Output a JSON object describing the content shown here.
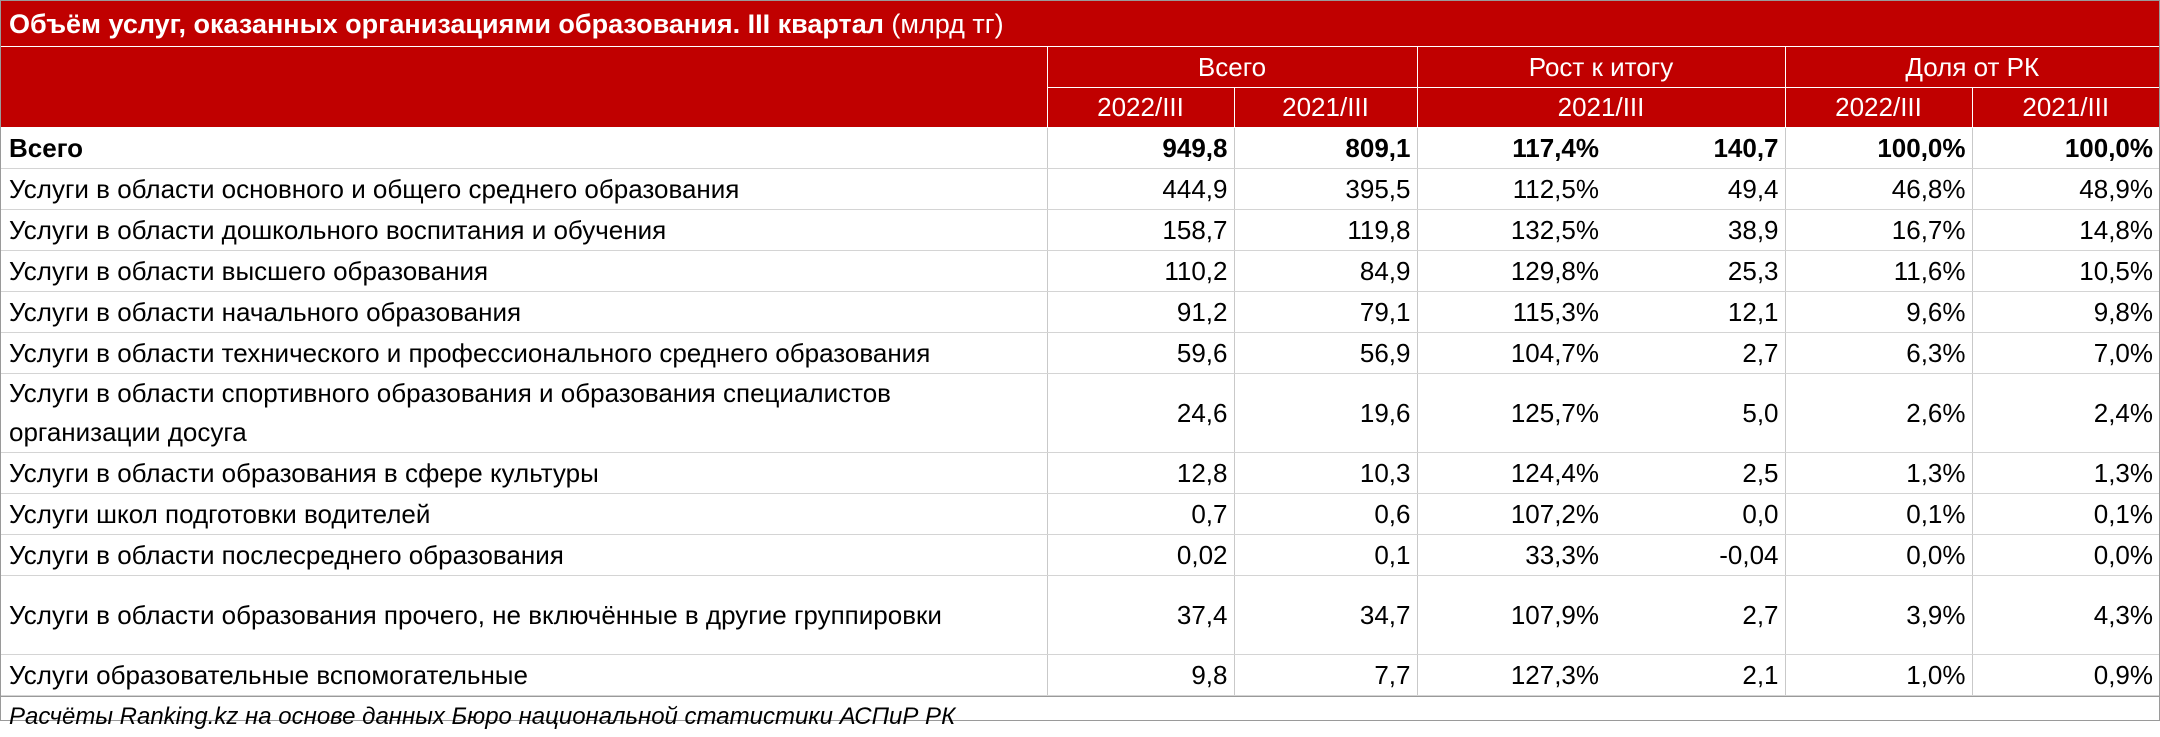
{
  "title": {
    "bold": "Объём услуг, оказанных организациями образования. III квартал",
    "units": " (млрд тг)"
  },
  "header": {
    "group_total": "Всего",
    "group_growth": "Рост к итогу",
    "group_share": "Доля от РК",
    "total_2022": "2022/III",
    "total_2021": "2021/III",
    "growth_2021": "2021/III",
    "share_2022": "2022/III",
    "share_2021": "2021/III"
  },
  "rows": [
    {
      "label": "Всего",
      "v2022": "949,8",
      "v2021": "809,1",
      "growth_pct": "117,4%",
      "growth_abs": "140,7",
      "share2022": "100,0%",
      "share2021": "100,0%"
    },
    {
      "label": "Услуги в области основного и общего среднего образования",
      "v2022": "444,9",
      "v2021": "395,5",
      "growth_pct": "112,5%",
      "growth_abs": "49,4",
      "share2022": "46,8%",
      "share2021": "48,9%"
    },
    {
      "label": "Услуги в области дошкольного воспитания и обучения",
      "v2022": "158,7",
      "v2021": "119,8",
      "growth_pct": "132,5%",
      "growth_abs": "38,9",
      "share2022": "16,7%",
      "share2021": "14,8%"
    },
    {
      "label": "Услуги в области высшего образования",
      "v2022": "110,2",
      "v2021": "84,9",
      "growth_pct": "129,8%",
      "growth_abs": "25,3",
      "share2022": "11,6%",
      "share2021": "10,5%"
    },
    {
      "label": "Услуги в области начального образования",
      "v2022": "91,2",
      "v2021": "79,1",
      "growth_pct": "115,3%",
      "growth_abs": "12,1",
      "share2022": "9,6%",
      "share2021": "9,8%"
    },
    {
      "label": "Услуги в области технического и профессионального среднего образования",
      "v2022": "59,6",
      "v2021": "56,9",
      "growth_pct": "104,7%",
      "growth_abs": "2,7",
      "share2022": "6,3%",
      "share2021": "7,0%"
    },
    {
      "label": "Услуги в области спортивного образования и образования специалистов организации досуга",
      "v2022": "24,6",
      "v2021": "19,6",
      "growth_pct": "125,7%",
      "growth_abs": "5,0",
      "share2022": "2,6%",
      "share2021": "2,4%"
    },
    {
      "label": "Услуги в области образования в сфере культуры",
      "v2022": "12,8",
      "v2021": "10,3",
      "growth_pct": "124,4%",
      "growth_abs": "2,5",
      "share2022": "1,3%",
      "share2021": "1,3%"
    },
    {
      "label": "Услуги школ подготовки водителей",
      "v2022": "0,7",
      "v2021": "0,6",
      "growth_pct": "107,2%",
      "growth_abs": "0,0",
      "share2022": "0,1%",
      "share2021": "0,1%"
    },
    {
      "label": "Услуги в области послесреднего образования",
      "v2022": "0,02",
      "v2021": "0,1",
      "growth_pct": "33,3%",
      "growth_abs": "-0,04",
      "share2022": "0,0%",
      "share2021": "0,0%"
    },
    {
      "label": "Услуги в области образования прочего, не включённые в другие группировки",
      "v2022": "37,4",
      "v2021": "34,7",
      "growth_pct": "107,9%",
      "growth_abs": "2,7",
      "share2022": "3,9%",
      "share2021": "4,3%"
    },
    {
      "label": "Услуги образовательные вспомогательные",
      "v2022": "9,8",
      "v2021": "7,7",
      "growth_pct": "127,3%",
      "growth_abs": "2,1",
      "share2022": "1,0%",
      "share2021": "0,9%"
    }
  ],
  "footnote": "Расчёты Ranking.kz на основе данных Бюро национальной статистики АСПиР РК",
  "colors": {
    "header_bg": "#c00000",
    "header_text": "#ffffff"
  }
}
